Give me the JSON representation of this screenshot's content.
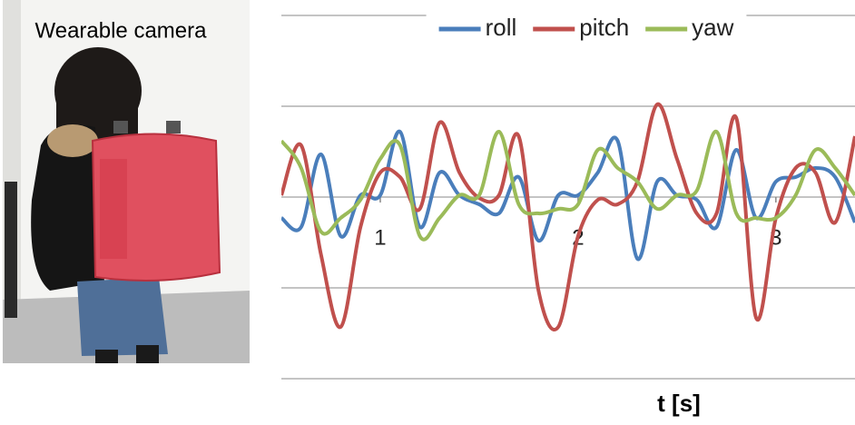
{
  "photo": {
    "caption": "Wearable camera"
  },
  "chart_data": {
    "type": "line",
    "x_label": "t [s]",
    "x": [
      0.5,
      0.6,
      0.7,
      0.8,
      0.9,
      1.0,
      1.1,
      1.2,
      1.3,
      1.4,
      1.5,
      1.6,
      1.7,
      1.8,
      1.9,
      2.0,
      2.1,
      2.2,
      2.3,
      2.4,
      2.5,
      2.6,
      2.7,
      2.8,
      2.9,
      3.0,
      3.1,
      3.2,
      3.3,
      3.4
    ],
    "xlim": [
      0.5,
      3.4
    ],
    "xticks": [
      1,
      2,
      3
    ],
    "ylim": [
      -2,
      2
    ],
    "yticks": [
      -2,
      -1,
      0,
      1,
      2
    ],
    "grid": true,
    "legend": "top",
    "series": [
      {
        "name": "roll",
        "color": "#4a7ebb",
        "values": [
          -0.23,
          -0.33,
          0.47,
          -0.43,
          0.02,
          0.02,
          0.72,
          -0.33,
          0.27,
          0.02,
          -0.08,
          -0.18,
          0.22,
          -0.48,
          0.02,
          0.02,
          0.27,
          0.62,
          -0.68,
          0.17,
          0.02,
          -0.03,
          -0.33,
          0.52,
          -0.23,
          0.17,
          0.22,
          0.32,
          0.22,
          -0.28
        ]
      },
      {
        "name": "pitch",
        "color": "#c0504d",
        "values": [
          0.02,
          0.57,
          -0.63,
          -1.43,
          -0.33,
          0.27,
          0.22,
          -0.13,
          0.82,
          0.27,
          -0.01,
          0.02,
          0.67,
          -1.03,
          -1.43,
          -0.43,
          -0.03,
          -0.08,
          0.17,
          1.02,
          0.42,
          -0.18,
          -0.18,
          0.87,
          -1.33,
          -0.23,
          0.32,
          0.27,
          -0.28,
          0.67
        ]
      },
      {
        "name": "yaw",
        "color": "#9bbb59",
        "values": [
          0.62,
          0.32,
          -0.38,
          -0.23,
          -0.03,
          0.42,
          0.57,
          -0.43,
          -0.23,
          0.02,
          0.02,
          0.72,
          -0.08,
          -0.18,
          -0.13,
          -0.08,
          0.52,
          0.32,
          0.17,
          -0.13,
          0.02,
          0.07,
          0.72,
          -0.18,
          -0.23,
          -0.23,
          0.02,
          0.52,
          0.32,
          0.02
        ]
      }
    ]
  }
}
